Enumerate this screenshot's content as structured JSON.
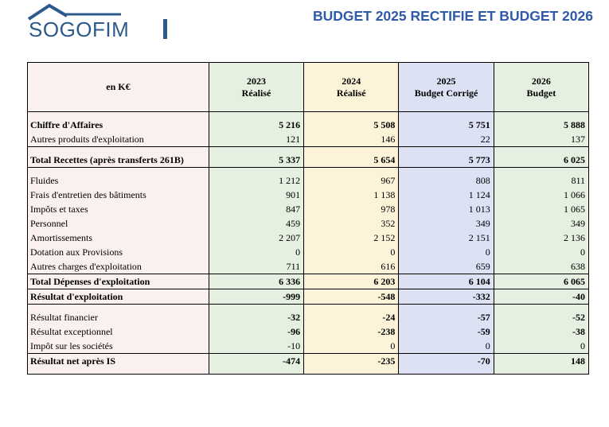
{
  "logo": {
    "text": "SOGOFIM"
  },
  "title": "BUDGET 2025 RECTIFIE ET BUDGET 2026",
  "table": {
    "unit_label": "en K€",
    "columns": [
      {
        "year": "2023",
        "sub": "Réalisé"
      },
      {
        "year": "2024",
        "sub": "Réalisé"
      },
      {
        "year": "2025",
        "sub": "Budget Corrigé"
      },
      {
        "year": "2026",
        "sub": "Budget"
      }
    ],
    "rows": [
      {
        "label": "Chiffre d'Affaires",
        "values": [
          "5 216",
          "5 508",
          "5 751",
          "5 888"
        ]
      },
      {
        "label": "Autres produits d'exploitation",
        "values": [
          "121",
          "146",
          "22",
          "137"
        ]
      },
      {
        "label": "Total Recettes (après transferts 261B)",
        "values": [
          "5 337",
          "5 654",
          "5 773",
          "6 025"
        ]
      },
      {
        "label": "Fluides",
        "values": [
          "1 212",
          "967",
          "808",
          "811"
        ]
      },
      {
        "label": "Frais d'entretien des bâtiments",
        "values": [
          "901",
          "1 138",
          "1 124",
          "1 066"
        ]
      },
      {
        "label": "Impôts et taxes",
        "values": [
          "847",
          "978",
          "1 013",
          "1 065"
        ]
      },
      {
        "label": "Personnel",
        "values": [
          "459",
          "352",
          "349",
          "349"
        ]
      },
      {
        "label": "Amortissements",
        "values": [
          "2 207",
          "2 152",
          "2 151",
          "2 136"
        ]
      },
      {
        "label": "Dotation aux Provisions",
        "values": [
          "0",
          "0",
          "0",
          "0"
        ]
      },
      {
        "label": "Autres charges d'exploitation",
        "values": [
          "711",
          "616",
          "659",
          "638"
        ]
      },
      {
        "label": "Total Dépenses d'exploitation",
        "values": [
          "6 336",
          "6 203",
          "6 104",
          "6 065"
        ]
      },
      {
        "label": "Résultat d'exploitation",
        "values": [
          "-999",
          "-548",
          "-332",
          "-40"
        ]
      },
      {
        "label": "Résultat financier",
        "values": [
          "-32",
          "-24",
          "-57",
          "-52"
        ]
      },
      {
        "label": "Résultat exceptionnel",
        "values": [
          "-96",
          "-238",
          "-59",
          "-38"
        ]
      },
      {
        "label": "Impôt sur les sociétés",
        "values": [
          "-10",
          "0",
          "0",
          "0"
        ]
      },
      {
        "label": "Résultat net après IS",
        "values": [
          "-474",
          "-235",
          "-70",
          "148"
        ]
      }
    ]
  }
}
